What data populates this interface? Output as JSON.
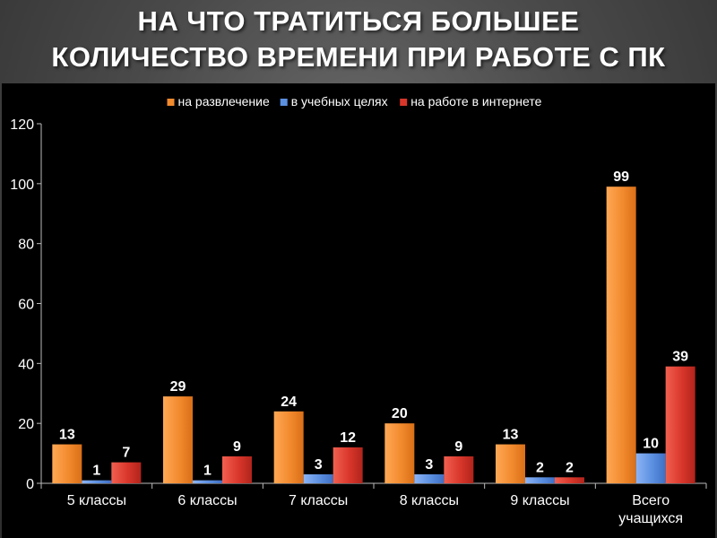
{
  "slide": {
    "title_line1": "НА ЧТО ТРАТИТЬСЯ БОЛЬШЕЕ",
    "title_line2": "КОЛИЧЕСТВО ВРЕМЕНИ ПРИ РАБОТЕ С ПК"
  },
  "chart_data": {
    "type": "bar",
    "title": "",
    "xlabel": "",
    "ylabel": "",
    "ylim": [
      0,
      120
    ],
    "yticks": [
      0,
      20,
      40,
      60,
      80,
      100,
      120
    ],
    "grid": false,
    "legend_position": "top",
    "categories": [
      "5 классы",
      "6 классы",
      "7 классы",
      "8 классы",
      "9 классы",
      "Всего учащихся"
    ],
    "series": [
      {
        "name": "на развлечение",
        "color": "#f28a2e",
        "values": [
          13,
          29,
          24,
          20,
          13,
          99
        ]
      },
      {
        "name": "в учебных целях",
        "color": "#5b8fe0",
        "values": [
          1,
          1,
          3,
          3,
          2,
          10
        ]
      },
      {
        "name": "на работе в интернете",
        "color": "#d9362b",
        "values": [
          7,
          9,
          12,
          9,
          2,
          39
        ]
      }
    ]
  }
}
